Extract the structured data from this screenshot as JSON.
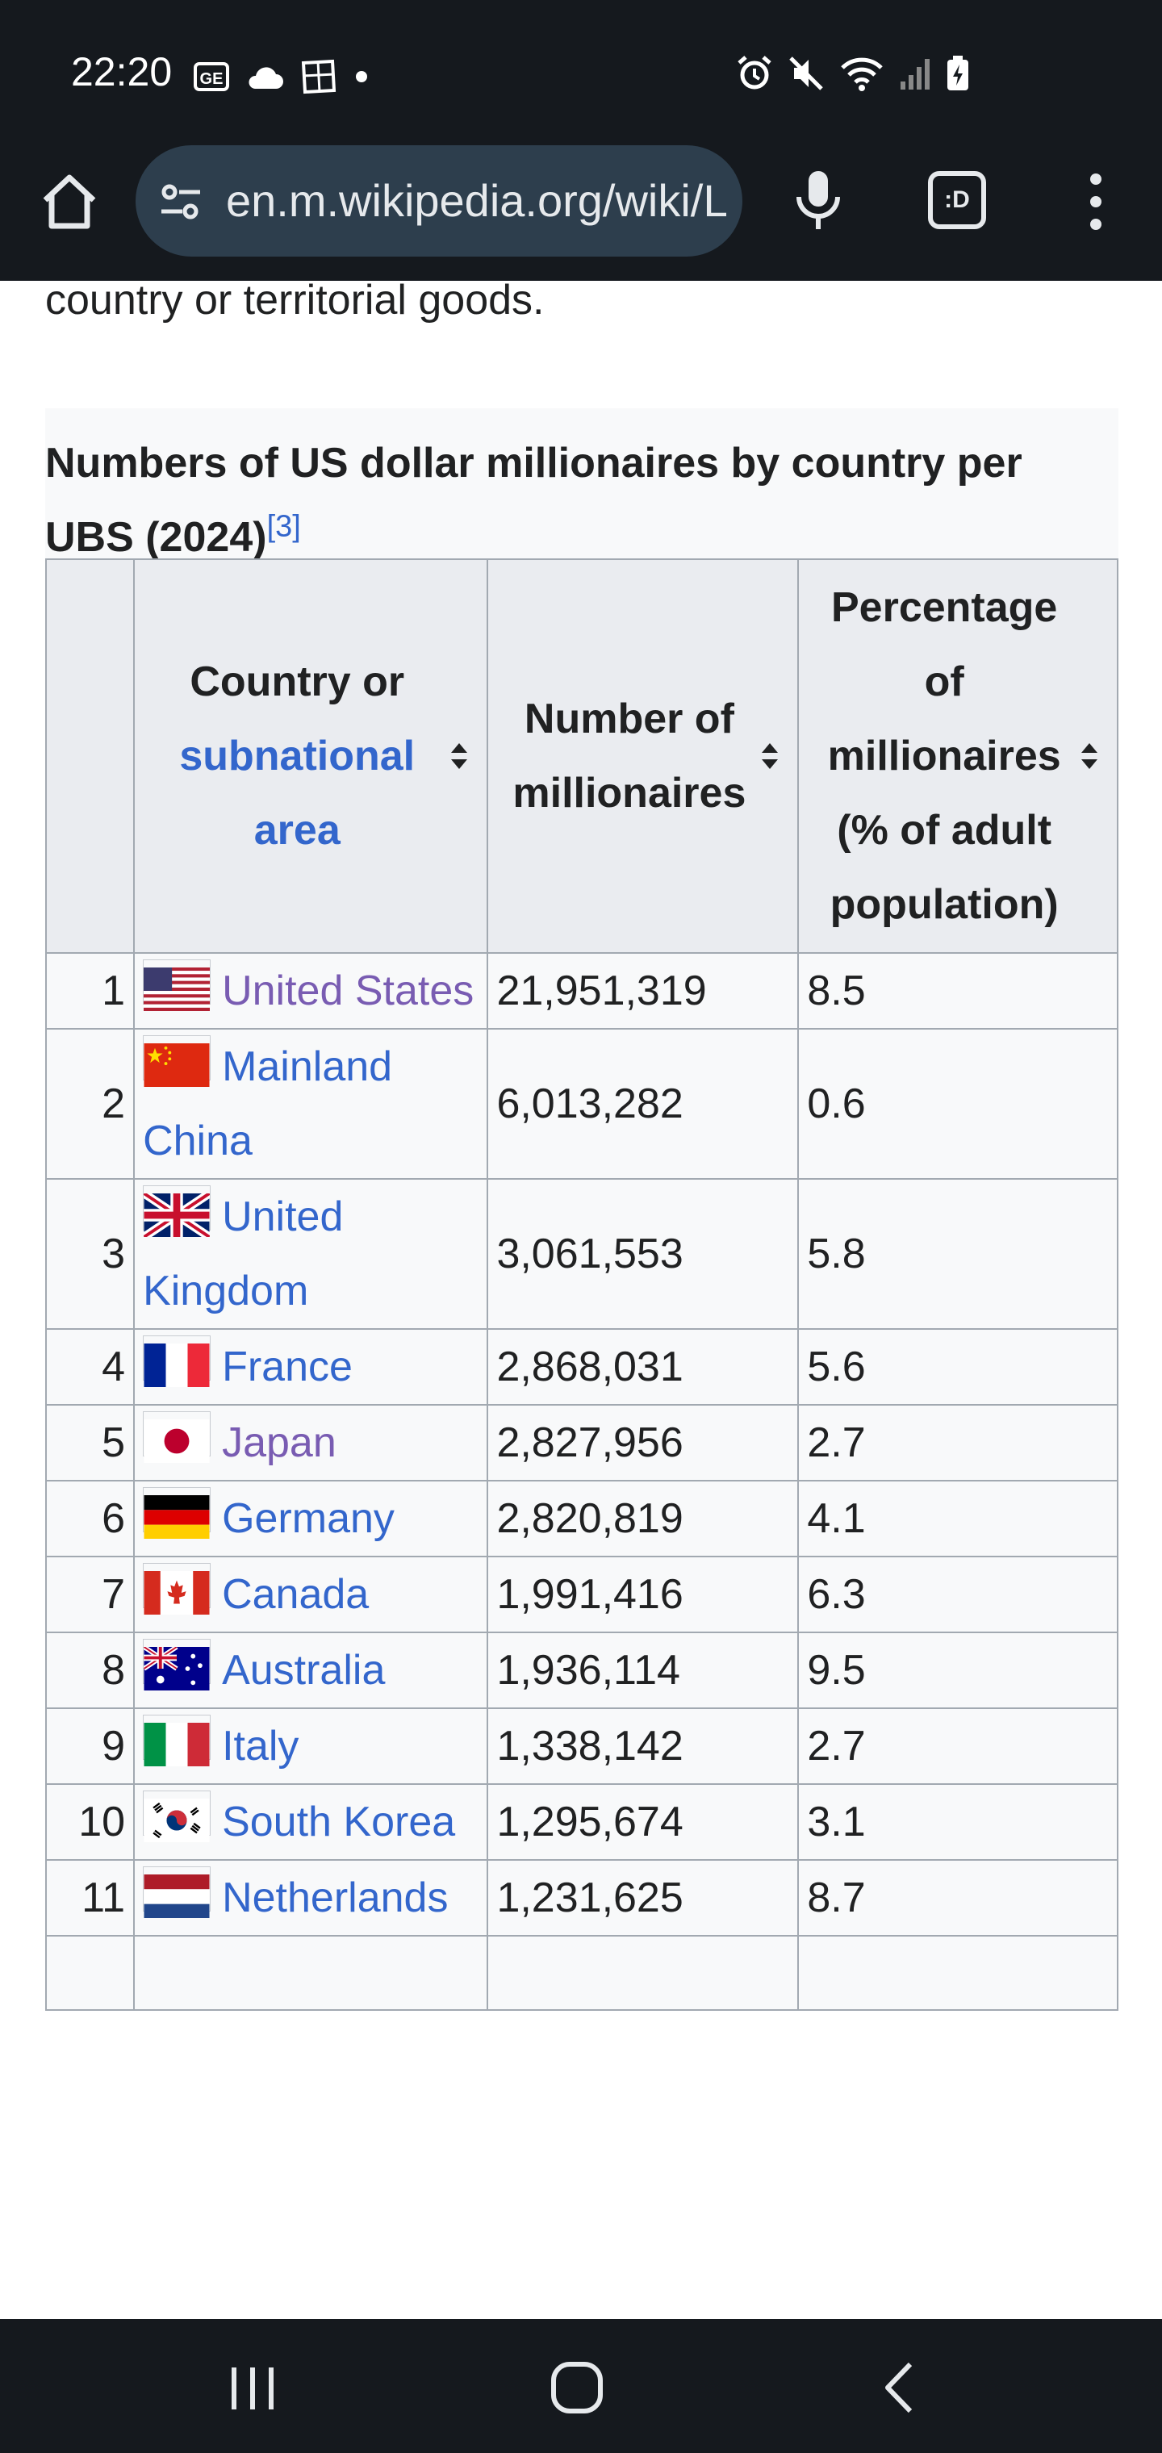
{
  "status_bar": {
    "time": "22:20",
    "left_icons": [
      "ge-icon",
      "cloud-icon",
      "photo-icon",
      "dot-icon"
    ],
    "right_icons": [
      "alarm-icon",
      "mute-icon",
      "wifi-icon",
      "signal-icon",
      "battery-charging-icon"
    ]
  },
  "browser": {
    "url": "en.m.wikipedia.org/wiki/List_of_countries_by_number_of_millionaires",
    "tabs_label": ":D"
  },
  "article": {
    "intro_text": "country or territorial goods."
  },
  "table": {
    "caption": "Numbers of US dollar millionaires by country per UBS (2024)",
    "caption_ref": "[3]",
    "headers": {
      "country_line1": "Country or",
      "country_link": "subnational area",
      "number": "Number of millionaires",
      "percentage": "Percentage of millionaires (% of adult population)"
    },
    "rows": [
      {
        "rank": "1",
        "country": "United States",
        "flag": "us",
        "number": "21,951,319",
        "pct": "8.5",
        "visited": true
      },
      {
        "rank": "2",
        "country": "Mainland China",
        "flag": "cn",
        "number": "6,013,282",
        "pct": "0.6",
        "visited": false
      },
      {
        "rank": "3",
        "country": "United Kingdom",
        "flag": "gb",
        "number": "3,061,553",
        "pct": "5.8",
        "visited": false
      },
      {
        "rank": "4",
        "country": "France",
        "flag": "fr",
        "number": "2,868,031",
        "pct": "5.6",
        "visited": false
      },
      {
        "rank": "5",
        "country": "Japan",
        "flag": "jp",
        "number": "2,827,956",
        "pct": "2.7",
        "visited": true
      },
      {
        "rank": "6",
        "country": "Germany",
        "flag": "de",
        "number": "2,820,819",
        "pct": "4.1",
        "visited": false
      },
      {
        "rank": "7",
        "country": "Canada",
        "flag": "ca",
        "number": "1,991,416",
        "pct": "6.3",
        "visited": false
      },
      {
        "rank": "8",
        "country": "Australia",
        "flag": "au",
        "number": "1,936,114",
        "pct": "9.5",
        "visited": false
      },
      {
        "rank": "9",
        "country": "Italy",
        "flag": "it",
        "number": "1,338,142",
        "pct": "2.7",
        "visited": false
      },
      {
        "rank": "10",
        "country": "South Korea",
        "flag": "kr",
        "number": "1,295,674",
        "pct": "3.1",
        "visited": false
      },
      {
        "rank": "11",
        "country": "Netherlands",
        "flag": "nl",
        "number": "1,231,625",
        "pct": "8.7",
        "visited": false
      }
    ]
  },
  "nav_bar": {
    "buttons": [
      "recents-icon",
      "home-icon",
      "back-icon"
    ]
  }
}
